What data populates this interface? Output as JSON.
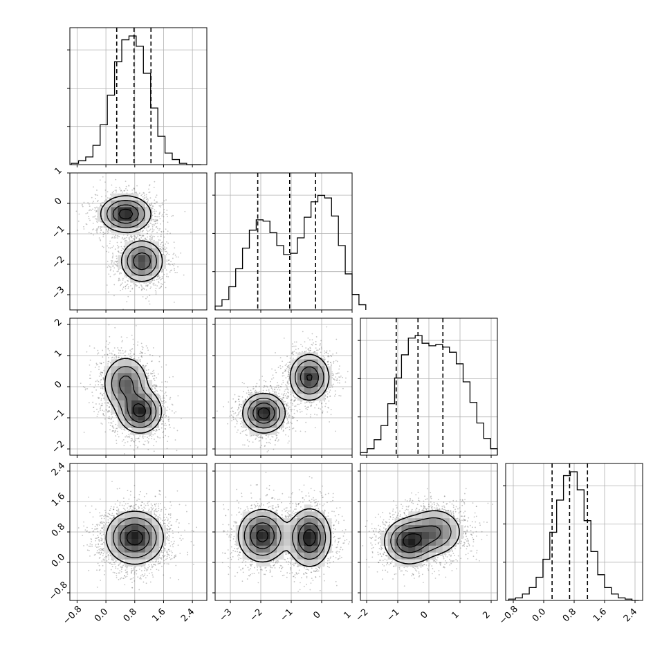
{
  "chart_data": {
    "type": "corner",
    "parameters": [
      "",
      "",
      "",
      ""
    ],
    "grid": true,
    "quantile_lines": [
      0.16,
      0.5,
      0.84
    ],
    "ranges": [
      [
        -1.0,
        2.8
      ],
      [
        -3.5,
        1.0
      ],
      [
        -2.2,
        2.2
      ],
      [
        -1.0,
        2.6
      ]
    ],
    "ticks": [
      [
        -0.8,
        0.0,
        0.8,
        1.6,
        2.4
      ],
      [
        -3,
        -2,
        -1,
        0,
        1
      ],
      [
        -2,
        -1,
        0,
        1,
        2
      ],
      [
        -0.8,
        0.0,
        0.8,
        1.6,
        2.4
      ]
    ],
    "tick_labels": [
      [
        "−0.8",
        "0.0",
        "0.8",
        "1.6",
        "2.4"
      ],
      [
        "−3",
        "−2",
        "−1",
        "0",
        "1"
      ],
      [
        "−2",
        "−1",
        "0",
        "1",
        "2"
      ],
      [
        "−0.8",
        "0.0",
        "0.8",
        "1.6",
        "2.4"
      ]
    ],
    "histograms": [
      {
        "param": 0,
        "bin_edges_start": -0.96,
        "bin_width": 0.2,
        "counts": [
          0.01,
          0.03,
          0.06,
          0.15,
          0.31,
          0.54,
          0.8,
          0.97,
          1.0,
          0.92,
          0.71,
          0.44,
          0.22,
          0.09,
          0.04,
          0.01,
          0.0,
          0.0
        ],
        "quantiles": [
          0.3,
          0.78,
          1.25
        ]
      },
      {
        "param": 1,
        "bin_edges_start": -3.5,
        "bin_width": 0.225,
        "counts": [
          0.03,
          0.08,
          0.18,
          0.32,
          0.48,
          0.62,
          0.7,
          0.69,
          0.6,
          0.5,
          0.43,
          0.44,
          0.56,
          0.72,
          0.84,
          0.89,
          0.87,
          0.73,
          0.5,
          0.28,
          0.12,
          0.04
        ],
        "quantiles": [
          -2.1,
          -1.05,
          -0.2
        ]
      },
      {
        "param": 2,
        "bin_edges_start": -2.2,
        "bin_width": 0.22,
        "counts": [
          0.02,
          0.05,
          0.12,
          0.23,
          0.4,
          0.6,
          0.78,
          0.91,
          0.93,
          0.87,
          0.85,
          0.86,
          0.84,
          0.8,
          0.71,
          0.57,
          0.41,
          0.25,
          0.13,
          0.05
        ],
        "quantiles": [
          -1.05,
          -0.35,
          0.45
        ]
      },
      {
        "param": 3,
        "bin_edges_start": -0.92,
        "bin_width": 0.18,
        "counts": [
          0.01,
          0.02,
          0.05,
          0.1,
          0.18,
          0.32,
          0.53,
          0.78,
          0.97,
          1.0,
          0.86,
          0.62,
          0.38,
          0.2,
          0.1,
          0.05,
          0.02,
          0.01,
          0.0
        ],
        "quantiles": [
          0.22,
          0.68,
          1.15
        ]
      }
    ],
    "joint_distributions": [
      {
        "x_param": 0,
        "y_param": 1,
        "components": [
          {
            "mean": [
              0.55,
              -0.35
            ],
            "sd": [
              0.35,
              0.3
            ],
            "weight": 0.55
          },
          {
            "mean": [
              1.0,
              -1.9
            ],
            "sd": [
              0.3,
              0.35
            ],
            "weight": 0.45
          }
        ]
      },
      {
        "x_param": 0,
        "y_param": 2,
        "components": [
          {
            "mean": [
              0.55,
              0.1
            ],
            "sd": [
              0.32,
              0.45
            ],
            "weight": 0.5
          },
          {
            "mean": [
              0.95,
              -0.8
            ],
            "sd": [
              0.3,
              0.35
            ],
            "weight": 0.5
          }
        ]
      },
      {
        "x_param": 0,
        "y_param": 3,
        "components": [
          {
            "mean": [
              0.8,
              0.65
            ],
            "sd": [
              0.4,
              0.35
            ],
            "weight": 1.0
          }
        ]
      },
      {
        "x_param": 1,
        "y_param": 2,
        "components": [
          {
            "mean": [
              -1.9,
              -0.85
            ],
            "sd": [
              0.35,
              0.32
            ],
            "weight": 0.5
          },
          {
            "mean": [
              -0.4,
              0.3
            ],
            "sd": [
              0.33,
              0.38
            ],
            "weight": 0.5
          }
        ]
      },
      {
        "x_param": 1,
        "y_param": 3,
        "components": [
          {
            "mean": [
              -1.95,
              0.7
            ],
            "sd": [
              0.4,
              0.35
            ],
            "weight": 0.5
          },
          {
            "mean": [
              -0.4,
              0.65
            ],
            "sd": [
              0.35,
              0.38
            ],
            "weight": 0.5
          }
        ]
      },
      {
        "x_param": 2,
        "y_param": 3,
        "components": [
          {
            "mean": [
              -0.65,
              0.55
            ],
            "sd": [
              0.4,
              0.3
            ],
            "weight": 0.55
          },
          {
            "mean": [
              0.2,
              0.8
            ],
            "sd": [
              0.45,
              0.32
            ],
            "weight": 0.45
          }
        ]
      }
    ]
  }
}
